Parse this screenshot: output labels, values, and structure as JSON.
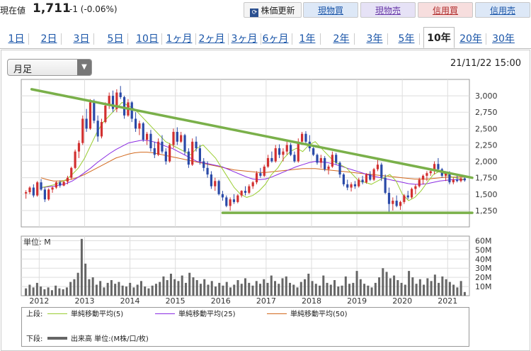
{
  "header": {
    "price_label": "現在値",
    "price_value": "1,711",
    "price_change": "-1 (-0.06%)",
    "refresh_label": "株価更新",
    "buttons": {
      "spot_buy": "現物買",
      "spot_sell": "現物売",
      "margin_buy": "信用買",
      "margin_sell": "信用売"
    }
  },
  "tabs": [
    "1日",
    "2日",
    "3日",
    "5日",
    "10日",
    "1ヶ月",
    "2ヶ月",
    "3ヶ月",
    "6ヶ月",
    "1年",
    "2年",
    "3年",
    "5年",
    "10年",
    "20年",
    "30年"
  ],
  "active_tab": "10年",
  "period_select": "月足",
  "timestamp": "21/11/22 15:00",
  "colors": {
    "up": "#d23030",
    "down": "#2a4aa8",
    "ma5": "#9acd32",
    "ma25": "#8a2be2",
    "ma50": "#d2691e",
    "trend": "#7ab04a",
    "volume": "#666666"
  },
  "chart_data": [
    {
      "type": "candlestick",
      "title": "",
      "x_ticks": [
        "2012",
        "2013",
        "2014",
        "2015",
        "2016",
        "2017",
        "2018",
        "2019",
        "2020",
        "2021"
      ],
      "ylim": [
        1000,
        3250
      ],
      "y_ticks": [
        "3,000",
        "2,750",
        "2,500",
        "2,250",
        "2,000",
        "1,750",
        "1,500",
        "1,250"
      ],
      "grid": true,
      "ohlc": [
        [
          1510,
          1560,
          1430,
          1530
        ],
        [
          1530,
          1620,
          1500,
          1600
        ],
        [
          1600,
          1650,
          1450,
          1480
        ],
        [
          1480,
          1700,
          1460,
          1680
        ],
        [
          1680,
          1730,
          1550,
          1570
        ],
        [
          1570,
          1600,
          1380,
          1420
        ],
        [
          1420,
          1590,
          1400,
          1570
        ],
        [
          1570,
          1620,
          1520,
          1600
        ],
        [
          1600,
          1700,
          1580,
          1680
        ],
        [
          1680,
          1710,
          1600,
          1630
        ],
        [
          1630,
          1700,
          1620,
          1690
        ],
        [
          1690,
          1780,
          1650,
          1750
        ],
        [
          1750,
          1920,
          1720,
          1900
        ],
        [
          1900,
          2180,
          1880,
          2150
        ],
        [
          2150,
          2320,
          2050,
          2280
        ],
        [
          2280,
          2700,
          2250,
          2650
        ],
        [
          2650,
          2800,
          2450,
          2500
        ],
        [
          2500,
          2950,
          2480,
          2900
        ],
        [
          2900,
          2950,
          2580,
          2620
        ],
        [
          2620,
          2700,
          2300,
          2380
        ],
        [
          2380,
          2650,
          2350,
          2600
        ],
        [
          2600,
          2900,
          2580,
          2850
        ],
        [
          2850,
          3050,
          2800,
          3000
        ],
        [
          3000,
          3080,
          2750,
          2800
        ],
        [
          2800,
          3100,
          2750,
          3050
        ],
        [
          3050,
          3150,
          2950,
          2980
        ],
        [
          2980,
          3000,
          2650,
          2700
        ],
        [
          2700,
          2950,
          2680,
          2900
        ],
        [
          2900,
          2920,
          2600,
          2650
        ],
        [
          2650,
          2750,
          2450,
          2500
        ],
        [
          2500,
          2620,
          2400,
          2580
        ],
        [
          2580,
          2600,
          2300,
          2330
        ],
        [
          2330,
          2450,
          2250,
          2420
        ],
        [
          2420,
          2480,
          2150,
          2200
        ],
        [
          2200,
          2300,
          2050,
          2100
        ],
        [
          2100,
          2350,
          2080,
          2300
        ],
        [
          2300,
          2400,
          2120,
          2150
        ],
        [
          2150,
          2200,
          1950,
          2000
        ],
        [
          2000,
          2280,
          1980,
          2250
        ],
        [
          2250,
          2500,
          2200,
          2450
        ],
        [
          2450,
          2520,
          2250,
          2300
        ],
        [
          2300,
          2450,
          2280,
          2400
        ],
        [
          2400,
          2420,
          2100,
          2150
        ],
        [
          2150,
          2200,
          1900,
          1950
        ],
        [
          1950,
          2350,
          1930,
          2300
        ],
        [
          2300,
          2380,
          2150,
          2200
        ],
        [
          2200,
          2250,
          1950,
          2000
        ],
        [
          2000,
          2050,
          1850,
          1900
        ],
        [
          1900,
          2000,
          1750,
          1800
        ],
        [
          1800,
          1850,
          1580,
          1620
        ],
        [
          1620,
          1750,
          1550,
          1700
        ],
        [
          1700,
          1720,
          1480,
          1500
        ],
        [
          1500,
          1550,
          1400,
          1450
        ],
        [
          1450,
          1480,
          1300,
          1320
        ],
        [
          1320,
          1450,
          1250,
          1420
        ],
        [
          1420,
          1500,
          1350,
          1380
        ],
        [
          1380,
          1500,
          1360,
          1480
        ],
        [
          1480,
          1560,
          1450,
          1550
        ],
        [
          1550,
          1620,
          1480,
          1520
        ],
        [
          1520,
          1650,
          1500,
          1620
        ],
        [
          1620,
          1700,
          1580,
          1680
        ],
        [
          1680,
          1850,
          1650,
          1820
        ],
        [
          1820,
          1900,
          1750,
          1780
        ],
        [
          1780,
          1950,
          1760,
          1920
        ],
        [
          1920,
          2100,
          1900,
          2050
        ],
        [
          2050,
          2150,
          1980,
          2000
        ],
        [
          2000,
          2250,
          1980,
          2200
        ],
        [
          2200,
          2260,
          2050,
          2100
        ],
        [
          2100,
          2200,
          2000,
          2150
        ],
        [
          2150,
          2300,
          2100,
          2250
        ],
        [
          2250,
          2280,
          2080,
          2100
        ],
        [
          2100,
          2150,
          1980,
          2000
        ],
        [
          2000,
          2350,
          1980,
          2300
        ],
        [
          2300,
          2450,
          2250,
          2420
        ],
        [
          2420,
          2460,
          2250,
          2300
        ],
        [
          2300,
          2400,
          2150,
          2200
        ],
        [
          2200,
          2250,
          2080,
          2100
        ],
        [
          2100,
          2120,
          1950,
          1980
        ],
        [
          1980,
          2100,
          1900,
          2050
        ],
        [
          2050,
          2080,
          1850,
          1880
        ],
        [
          1880,
          1950,
          1800,
          1920
        ],
        [
          1920,
          2150,
          1900,
          2100
        ],
        [
          2100,
          2130,
          1950,
          1980
        ],
        [
          1980,
          2000,
          1750,
          1800
        ],
        [
          1800,
          1820,
          1620,
          1650
        ],
        [
          1650,
          1720,
          1560,
          1600
        ],
        [
          1600,
          1680,
          1540,
          1650
        ],
        [
          1650,
          1700,
          1580,
          1620
        ],
        [
          1620,
          1750,
          1600,
          1720
        ],
        [
          1720,
          1780,
          1650,
          1680
        ],
        [
          1680,
          1820,
          1660,
          1800
        ],
        [
          1800,
          1850,
          1700,
          1720
        ],
        [
          1720,
          1900,
          1700,
          1880
        ],
        [
          1880,
          2050,
          1850,
          1950
        ],
        [
          1950,
          1980,
          1700,
          1750
        ],
        [
          1750,
          1800,
          1500,
          1520
        ],
        [
          1520,
          1600,
          1200,
          1350
        ],
        [
          1350,
          1450,
          1250,
          1400
        ],
        [
          1400,
          1480,
          1300,
          1320
        ],
        [
          1320,
          1400,
          1260,
          1380
        ],
        [
          1380,
          1500,
          1350,
          1480
        ],
        [
          1480,
          1550,
          1420,
          1450
        ],
        [
          1450,
          1600,
          1430,
          1580
        ],
        [
          1580,
          1650,
          1500,
          1620
        ],
        [
          1620,
          1750,
          1600,
          1720
        ],
        [
          1720,
          1800,
          1650,
          1780
        ],
        [
          1780,
          1850,
          1700,
          1820
        ],
        [
          1820,
          1880,
          1780,
          1850
        ],
        [
          1850,
          2000,
          1800,
          1960
        ],
        [
          1960,
          2050,
          1850,
          1880
        ],
        [
          1880,
          1900,
          1750,
          1780
        ],
        [
          1780,
          1850,
          1700,
          1820
        ],
        [
          1820,
          1850,
          1650,
          1680
        ],
        [
          1680,
          1760,
          1650,
          1720
        ],
        [
          1720,
          1780,
          1680,
          1700
        ],
        [
          1700,
          1760,
          1680,
          1740
        ],
        [
          1740,
          1760,
          1690,
          1711
        ]
      ],
      "ma5": [
        1600,
        1620,
        1640,
        1680,
        1720,
        1800,
        1900,
        2050,
        2250,
        2450,
        2600,
        2700,
        2800,
        2900,
        2850,
        2800,
        2700,
        2600,
        2500,
        2400,
        2300,
        2250,
        2200,
        2150,
        2100,
        2200,
        2250,
        2150,
        2050,
        1900,
        1750,
        1600,
        1500,
        1450,
        1480,
        1550,
        1650,
        1800,
        1900,
        2050,
        2150,
        2200,
        2150,
        2250,
        2300,
        2200,
        2100,
        2000,
        1950,
        1900,
        1800,
        1700,
        1680,
        1650,
        1700,
        1750,
        1800,
        1700,
        1500,
        1400,
        1450,
        1550,
        1680,
        1800,
        1850,
        1800,
        1760,
        1740,
        1720
      ],
      "ma25": [
        1600,
        1610,
        1620,
        1640,
        1660,
        1700,
        1760,
        1830,
        1900,
        1980,
        2050,
        2120,
        2180,
        2230,
        2280,
        2300,
        2320,
        2320,
        2300,
        2270,
        2230,
        2200,
        2150,
        2100,
        2050,
        2000,
        1980,
        1960,
        1940,
        1920,
        1880,
        1840,
        1800,
        1760,
        1730,
        1720,
        1730,
        1760,
        1800,
        1840,
        1880,
        1920,
        1950,
        1980,
        2000,
        1990,
        1980,
        1960,
        1930,
        1900,
        1870,
        1840,
        1810,
        1780,
        1760,
        1740,
        1720,
        1700,
        1680,
        1660,
        1650,
        1650,
        1660,
        1680,
        1700,
        1710,
        1720,
        1720,
        1720
      ],
      "ma50": [
        1750,
        1720,
        1700,
        1700,
        1710,
        1730,
        1760,
        1800,
        1850,
        1900,
        1950,
        2000,
        2050,
        2080,
        2110,
        2130,
        2140,
        2140,
        2130,
        2110,
        2090,
        2070,
        2050,
        2030,
        2010,
        1990,
        1970,
        1950,
        1930,
        1910,
        1890,
        1870,
        1860,
        1850,
        1840,
        1830,
        1830,
        1840,
        1850,
        1860,
        1870,
        1880,
        1890,
        1890,
        1890,
        1880,
        1870,
        1860,
        1850,
        1840,
        1830,
        1820,
        1810,
        1800,
        1790,
        1780,
        1770,
        1760,
        1750,
        1740,
        1730,
        1730,
        1730,
        1740,
        1750,
        1760,
        1760,
        1760,
        1760
      ],
      "trendlines": [
        {
          "name": "resistance",
          "from": [
            1.5,
            3100
          ],
          "to": [
            118,
            1750
          ]
        },
        {
          "name": "support",
          "from": [
            52,
            1215
          ],
          "to": [
            118,
            1215
          ]
        }
      ]
    },
    {
      "type": "bar",
      "title": "",
      "unit_label": "単位: M",
      "ylim": [
        0,
        65
      ],
      "y_ticks": [
        "60M",
        "50M",
        "40M",
        "30M",
        "20M",
        "10M"
      ],
      "values": [
        8,
        12,
        9,
        14,
        10,
        7,
        9,
        6,
        11,
        8,
        7,
        9,
        15,
        18,
        25,
        62,
        35,
        18,
        20,
        12,
        16,
        9,
        14,
        17,
        13,
        15,
        11,
        10,
        14,
        9,
        12,
        16,
        10,
        8,
        11,
        13,
        15,
        21,
        17,
        24,
        18,
        16,
        22,
        14,
        25,
        20,
        17,
        13,
        18,
        12,
        16,
        10,
        14,
        11,
        15,
        9,
        12,
        17,
        13,
        19,
        14,
        11,
        16,
        13,
        18,
        14,
        22,
        16,
        13,
        19,
        21,
        14,
        12,
        9,
        15,
        18,
        24,
        16,
        13,
        11,
        22,
        14,
        12,
        17,
        10,
        11,
        21,
        13,
        14,
        27,
        18,
        13,
        11,
        9,
        14,
        20,
        30,
        26,
        19,
        22,
        17,
        14,
        12,
        27,
        20,
        13,
        18,
        12,
        19,
        16,
        23,
        14,
        21,
        18,
        15,
        12,
        9,
        16,
        4
      ]
    }
  ],
  "legend": {
    "upper_label": "上段:",
    "lower_label": "下段:",
    "ma5": "単純移動平均(5)",
    "ma25": "単純移動平均(25)",
    "ma50": "単純移動平均(50)",
    "volume": "出来高 単位:(M株/口/枚)"
  }
}
